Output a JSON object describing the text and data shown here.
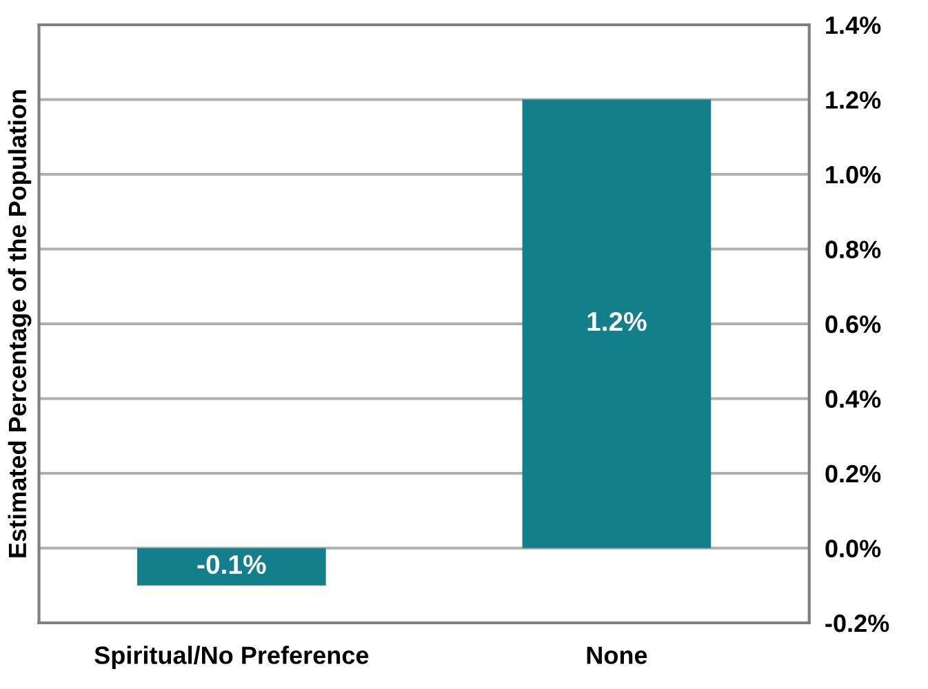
{
  "chart_data": {
    "type": "bar",
    "ylabel": "Estimated Percentage of the Population",
    "categories": [
      "Spiritual/No Preference",
      "None"
    ],
    "values": [
      -0.1,
      1.2
    ],
    "color": "#137f8a",
    "value_labels": [
      "-0.1%",
      "1.2%"
    ],
    "ylim": [
      -0.2,
      1.4
    ],
    "yticks": [
      {
        "value": -0.2,
        "label": "-0.2%"
      },
      {
        "value": 0,
        "label": "0.0%"
      },
      {
        "value": 0.2,
        "label": "0.2%"
      },
      {
        "value": 0.4,
        "label": "0.4%"
      },
      {
        "value": 0.6,
        "label": "0.6%"
      },
      {
        "value": 0.8,
        "label": "0.8%"
      },
      {
        "value": 1.0,
        "label": "1.0%"
      },
      {
        "value": 1.2,
        "label": "1.2%"
      },
      {
        "value": 1.4,
        "label": "1.4%"
      }
    ],
    "grid": "y"
  }
}
